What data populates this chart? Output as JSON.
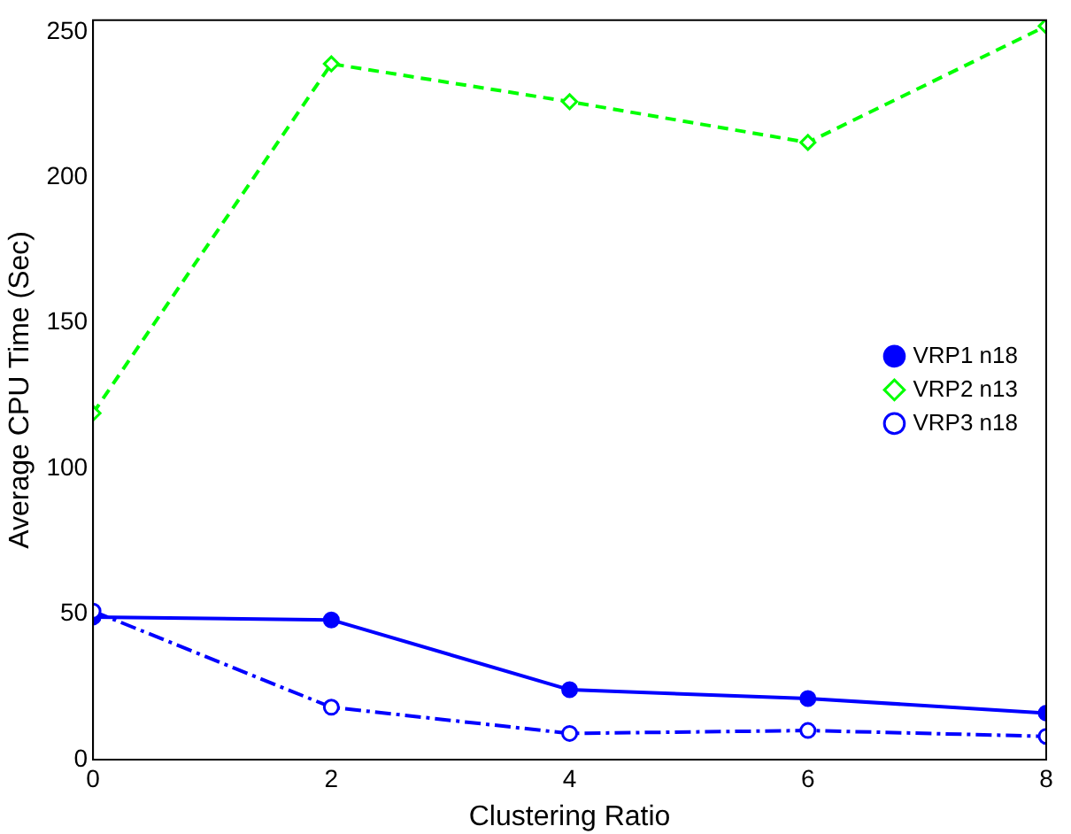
{
  "chart_data": {
    "type": "line",
    "xlabel": "Clustering Ratio",
    "ylabel": "Average CPU Time (Sec)",
    "x": [
      0,
      2,
      4,
      6,
      8
    ],
    "series": [
      {
        "name": "VRP1 n18",
        "color": "#0000ff",
        "values": [
          49,
          48,
          24,
          21,
          16
        ],
        "marker": "circle",
        "line_style": "solid"
      },
      {
        "name": "VRP2 n13",
        "color": "#00ff00",
        "values": [
          119,
          239,
          226,
          212,
          252
        ],
        "marker": "diamond",
        "line_style": "dashed"
      },
      {
        "name": "VRP3 n18",
        "color": "#0000ff",
        "values": [
          51,
          18,
          9,
          10,
          8
        ],
        "marker": "circle",
        "line_style": "dotted"
      }
    ],
    "xlim": [
      0,
      8
    ],
    "xticks": [
      0,
      2,
      4,
      6,
      8
    ],
    "ylim": [
      0,
      254
    ],
    "yticks": [
      0,
      50,
      100,
      150,
      200,
      250
    ],
    "grid": false,
    "legend": "right"
  }
}
